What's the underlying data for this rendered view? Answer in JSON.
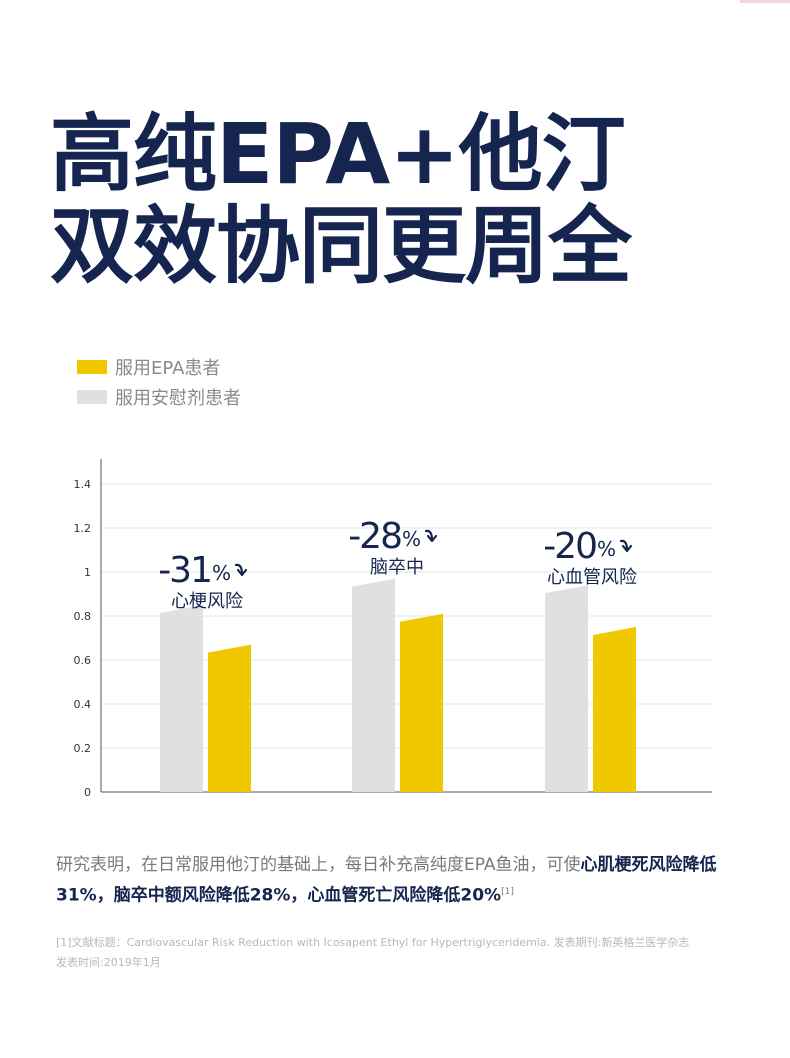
{
  "headline": {
    "line1": "高纯EPA+他汀",
    "line2": "双效协同更周全"
  },
  "legend": [
    {
      "label": "服用EPA患者",
      "color": "#f0c800"
    },
    {
      "label": "服用安慰剂患者",
      "color": "#e0e0e0"
    }
  ],
  "chart_data": {
    "type": "bar",
    "categories": [
      "心梗风险",
      "脑卒中",
      "心血管风险"
    ],
    "series": [
      {
        "name": "服用安慰剂患者",
        "color": "#e0e0e0",
        "values": [
          0.85,
          0.97,
          0.94
        ]
      },
      {
        "name": "服用EPA患者",
        "color": "#f0c800",
        "values": [
          0.67,
          0.81,
          0.75
        ]
      }
    ],
    "ylim": [
      0,
      1.4
    ],
    "yticks": [
      "0",
      "0.2",
      "0.4",
      "0.6",
      "0.8",
      "1",
      "1.2",
      "1.4"
    ],
    "annotations": [
      {
        "number": "-31",
        "sign": "%",
        "label": "心梗风险"
      },
      {
        "number": "-28",
        "sign": "%",
        "label": "脑卒中"
      },
      {
        "number": "-20",
        "sign": "%",
        "label": "心血管风险"
      }
    ],
    "grid": true,
    "legend_position": "top-left"
  },
  "note": {
    "plain": "研究表明，在日常服用他汀的基础上，每日补充高纯度EPA鱼油，可使",
    "highlight": "心肌梗死风险降低31%，脑卒中额风险降低28%，心血管死亡风险降低20%",
    "sup": "[1]"
  },
  "reference": {
    "line1": "[1]文献标题：Cardiovascular Risk Reduction with Icosapent Ethyl for Hypertriglyceridemia.  发表期刊:新英格兰医学杂志",
    "line2": "发表时间:2019年1月"
  }
}
